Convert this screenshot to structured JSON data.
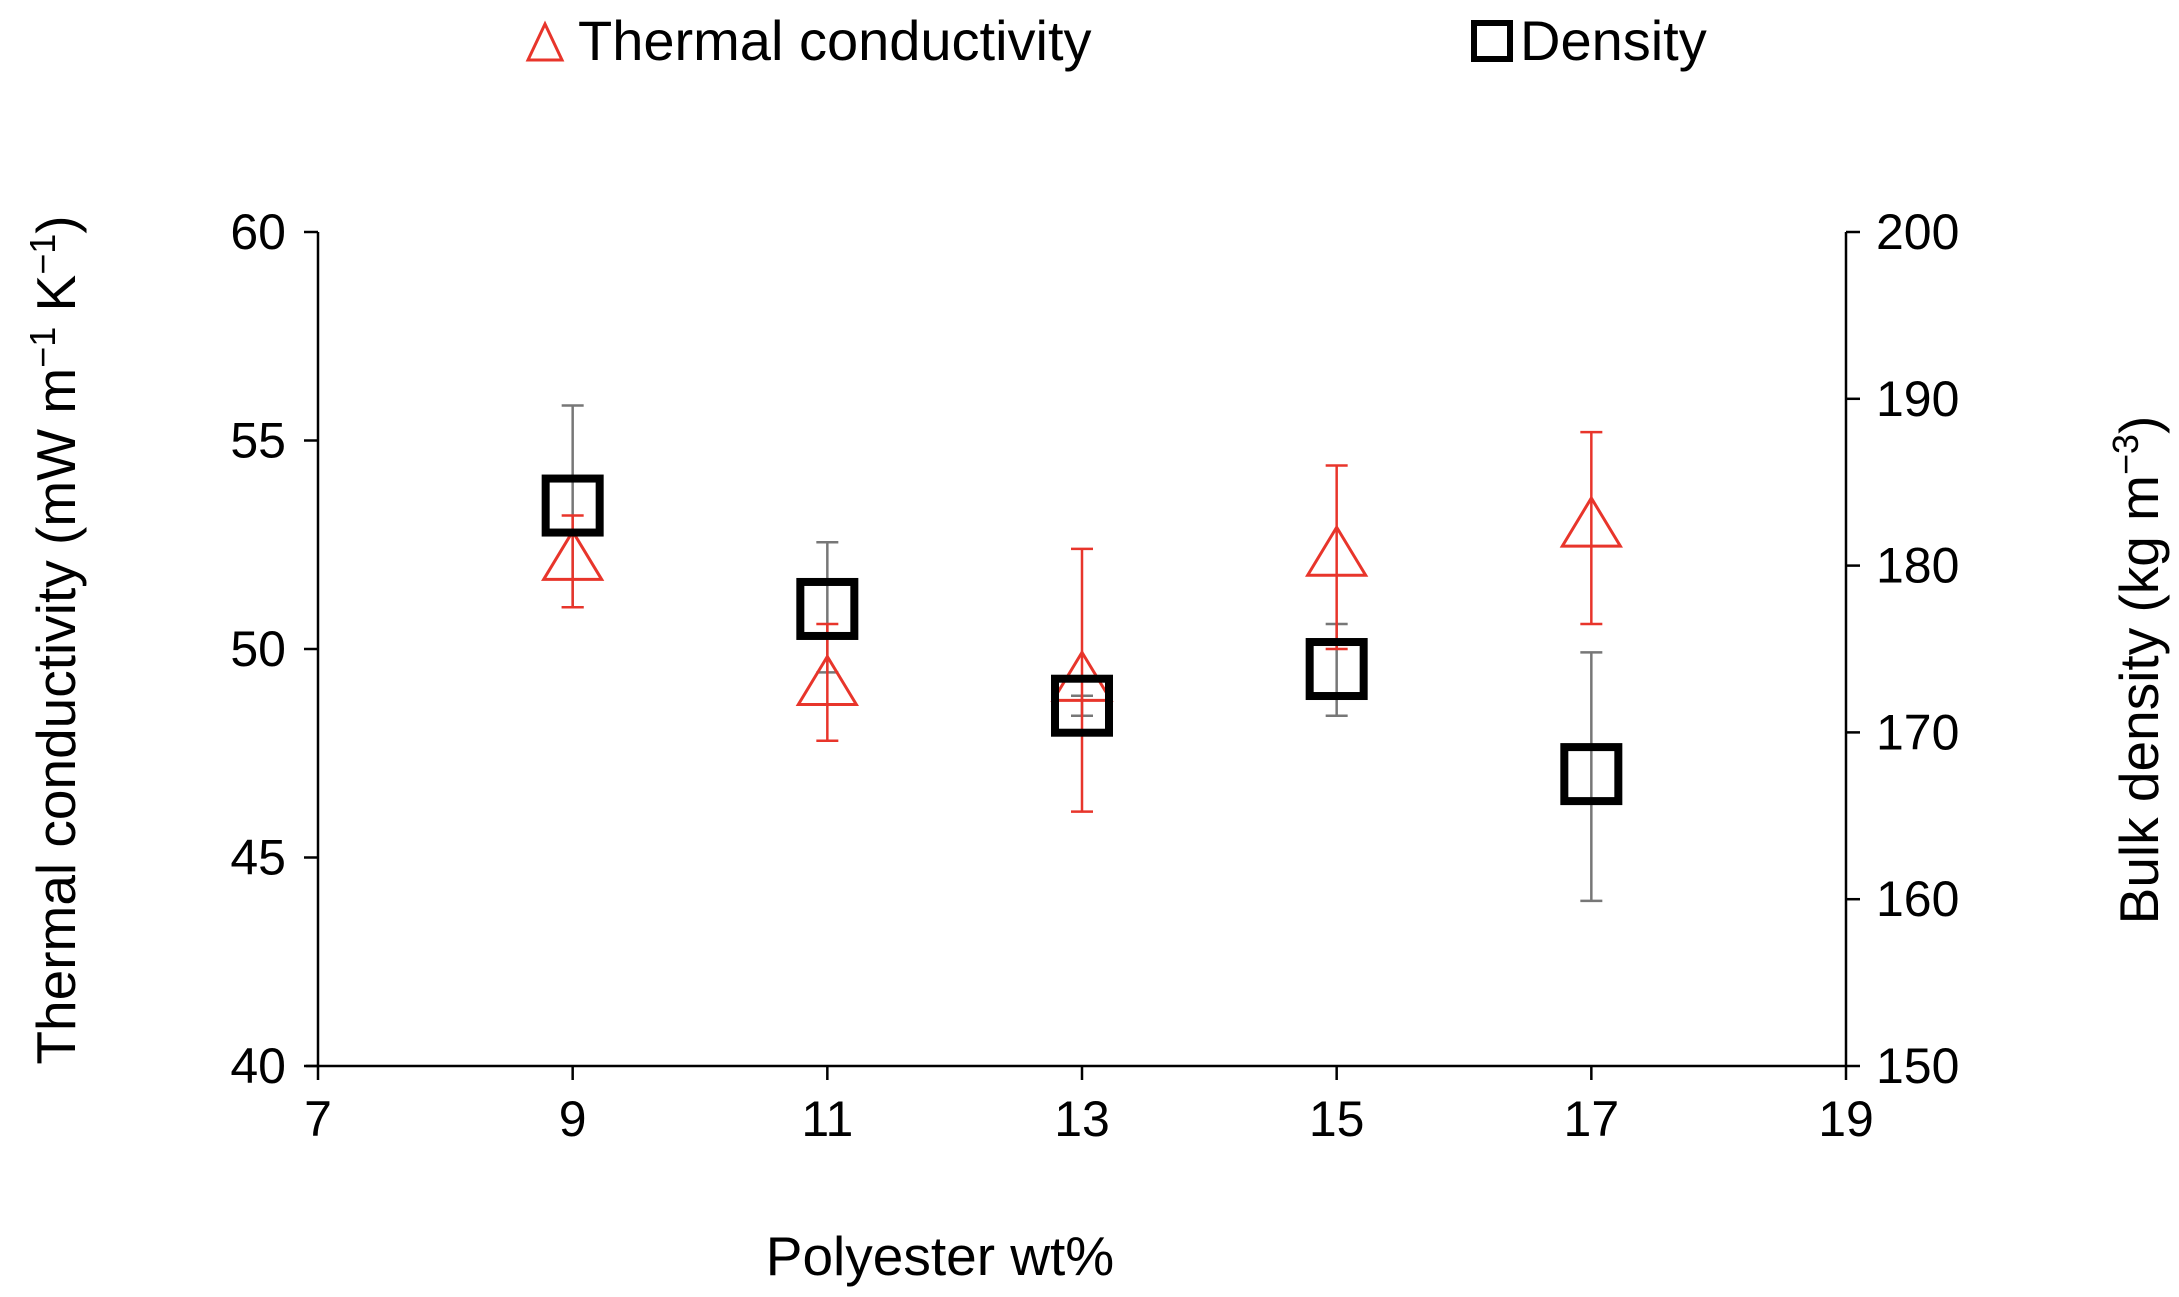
{
  "chart_data": {
    "type": "scatter",
    "x_axis": {
      "label": "Polyester wt%",
      "range": [
        7,
        19
      ],
      "ticks": [
        7,
        9,
        11,
        13,
        15,
        17,
        19
      ]
    },
    "y_axis_left": {
      "label_main": "Thermal conductivity (mW m",
      "label_sup1": "−1",
      "label_mid": " K",
      "label_sup2": "−1",
      "label_end": ")",
      "range": [
        40,
        60
      ],
      "ticks": [
        40,
        45,
        50,
        55,
        60
      ]
    },
    "y_axis_right": {
      "label_main": "Bulk density (kg m",
      "label_sup": "−3",
      "label_end": ")",
      "range": [
        150,
        200
      ],
      "ticks": [
        150,
        160,
        170,
        180,
        190,
        200
      ]
    },
    "series": [
      {
        "name": "Thermal conductivity",
        "axis": "left",
        "marker": "triangle",
        "color": "#e8352b",
        "points": [
          {
            "x": 9,
            "y": 52.1,
            "err_low": 51.0,
            "err_high": 53.2
          },
          {
            "x": 11,
            "y": 49.1,
            "err_low": 47.8,
            "err_high": 50.6
          },
          {
            "x": 13,
            "y": 49.2,
            "err_low": 46.1,
            "err_high": 52.4
          },
          {
            "x": 15,
            "y": 52.2,
            "err_low": 50.0,
            "err_high": 54.4
          },
          {
            "x": 17,
            "y": 52.9,
            "err_low": 50.6,
            "err_high": 55.2
          }
        ]
      },
      {
        "name": "Density",
        "axis": "right",
        "marker": "square",
        "color": "#000000",
        "points": [
          {
            "x": 9,
            "y": 183.6,
            "err_low": 177.5,
            "err_high": 189.6
          },
          {
            "x": 11,
            "y": 177.4,
            "err_low": 173.6,
            "err_high": 181.4
          },
          {
            "x": 13,
            "y": 171.6,
            "err_low": 171.0,
            "err_high": 172.2
          },
          {
            "x": 15,
            "y": 173.8,
            "err_low": 171.0,
            "err_high": 176.5
          },
          {
            "x": 17,
            "y": 167.5,
            "err_low": 159.9,
            "err_high": 174.8
          }
        ]
      }
    ],
    "legend": [
      {
        "label": "Thermal conductivity",
        "marker": "triangle",
        "color": "#e8352b"
      },
      {
        "label": "Density",
        "marker": "square",
        "color": "#000000"
      }
    ]
  }
}
